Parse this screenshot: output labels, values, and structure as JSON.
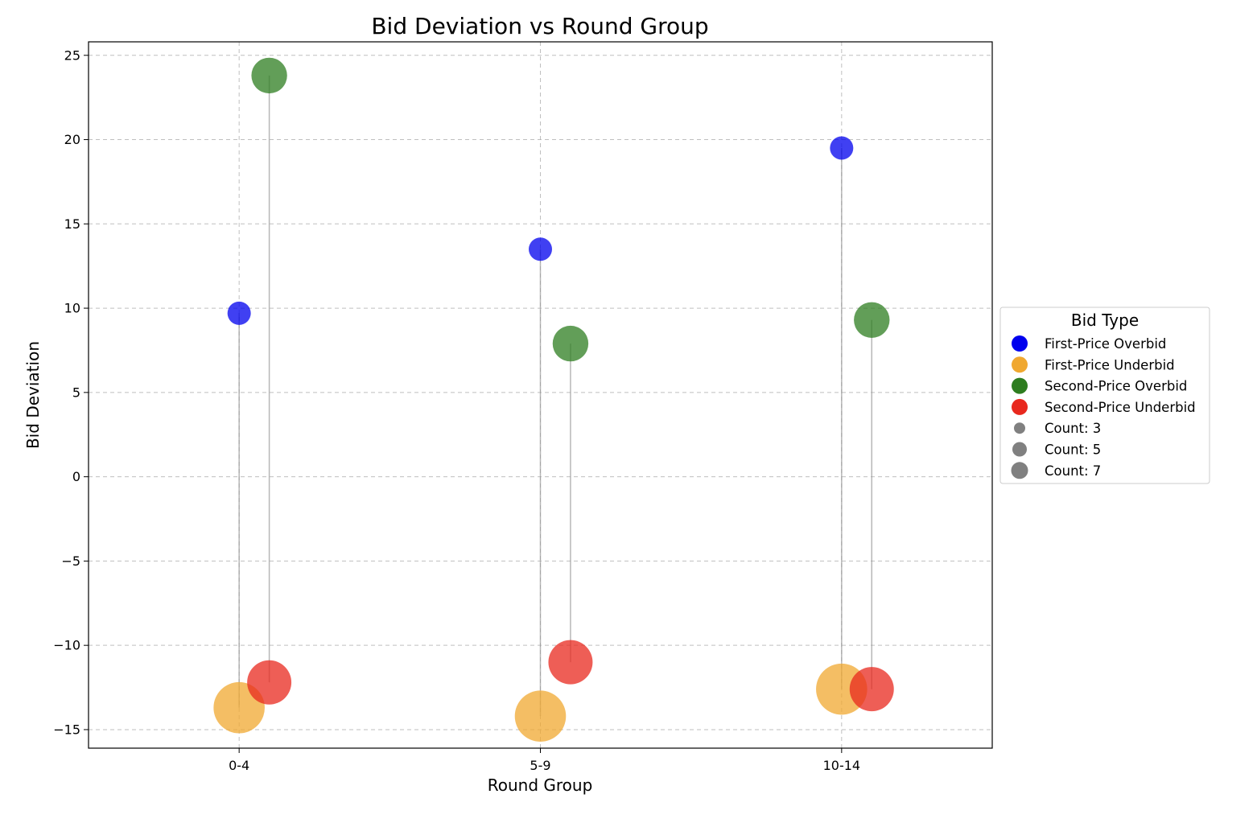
{
  "chart_data": {
    "type": "scatter",
    "title": "Bid Deviation vs Round Group",
    "xlabel": "Round Group",
    "ylabel": "Bid Deviation",
    "categories": [
      "0-4",
      "5-9",
      "10-14"
    ],
    "ylim": [
      -16.1,
      25.8
    ],
    "yticks": [
      25,
      20,
      15,
      10,
      5,
      0,
      -5,
      -10,
      -15
    ],
    "ytick_labels": [
      "25",
      "20",
      "15",
      "10",
      "5",
      "0",
      "−5",
      "−10",
      "−15"
    ],
    "grid": true,
    "series": [
      {
        "name": "First-Price Overbid",
        "color": "#0000ee",
        "offset": 0,
        "values": [
          9.7,
          13.5,
          19.5
        ],
        "counts": [
          1,
          1,
          1
        ]
      },
      {
        "name": "First-Price Underbid",
        "color": "#f0a830",
        "offset": 0,
        "values": [
          -13.7,
          -14.2,
          -12.6
        ],
        "counts": [
          7,
          7,
          7
        ]
      },
      {
        "name": "Second-Price Overbid",
        "color": "#2e7d20",
        "offset": 0.1,
        "values": [
          23.8,
          7.9,
          9.3
        ],
        "counts": [
          3,
          3,
          3
        ]
      },
      {
        "name": "Second-Price Underbid",
        "color": "#e8281e",
        "offset": 0.1,
        "values": [
          -12.2,
          -11.0,
          -12.6
        ],
        "counts": [
          5,
          5,
          5
        ]
      }
    ],
    "stems": [
      {
        "category_index": 0,
        "offset": 0,
        "from": 9.7,
        "to": -13.7
      },
      {
        "category_index": 0,
        "offset": 0.1,
        "from": 23.8,
        "to": -12.2
      },
      {
        "category_index": 1,
        "offset": 0,
        "from": 13.5,
        "to": -14.2
      },
      {
        "category_index": 1,
        "offset": 0.1,
        "from": 7.9,
        "to": -11.0
      },
      {
        "category_index": 2,
        "offset": 0,
        "from": 19.5,
        "to": -12.6
      },
      {
        "category_index": 2,
        "offset": 0.1,
        "from": 9.3,
        "to": -12.6
      }
    ],
    "legend": {
      "title": "Bid Type",
      "placement": "center-right outside",
      "entries": [
        {
          "label": "First-Price Overbid",
          "color": "#0000ee"
        },
        {
          "label": "First-Price Underbid",
          "color": "#f0a830"
        },
        {
          "label": "Second-Price Overbid",
          "color": "#2e7d20"
        },
        {
          "label": "Second-Price Underbid",
          "color": "#e8281e"
        },
        {
          "label": "Count: 3",
          "color": "#808080",
          "count": 3
        },
        {
          "label": "Count: 5",
          "color": "#808080",
          "count": 5
        },
        {
          "label": "Count: 7",
          "color": "#808080",
          "count": 7
        }
      ]
    }
  }
}
